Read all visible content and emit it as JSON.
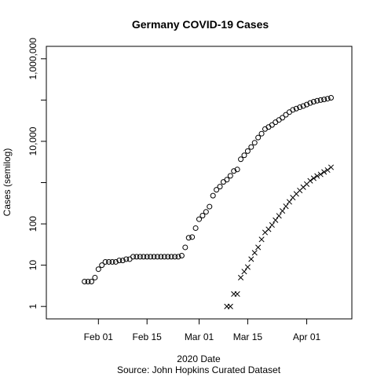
{
  "chart_data": {
    "type": "scatter",
    "title": "Germany COVID-19 Cases",
    "xlabel": "2020 Date",
    "source": "Source: John Hopkins Curated Dataset",
    "ylabel": "Cases (semilog)",
    "y_scale": "log",
    "ylim": [
      0.5,
      2000000
    ],
    "xlim": [
      "2020-01-17",
      "2020-04-14"
    ],
    "x_ticks": [
      {
        "date": "2020-02-01",
        "label": "Feb 01"
      },
      {
        "date": "2020-02-15",
        "label": "Feb 15"
      },
      {
        "date": "2020-03-01",
        "label": "Mar 01"
      },
      {
        "date": "2020-03-15",
        "label": "Mar 15"
      },
      {
        "date": "2020-04-01",
        "label": "Apr 01"
      }
    ],
    "y_ticks": [
      {
        "value": 1,
        "label": "1"
      },
      {
        "value": 10,
        "label": "10"
      },
      {
        "value": 100,
        "label": "100"
      },
      {
        "value": 10000,
        "label": "10,000"
      },
      {
        "value": 1000000,
        "label": "1,000,000"
      }
    ],
    "y_minor_ticks": [
      1000,
      100000
    ],
    "legend": "none",
    "grid": false,
    "series": [
      {
        "marker": "circle",
        "x": [
          "2020-01-28",
          "2020-01-29",
          "2020-01-30",
          "2020-01-31",
          "2020-02-01",
          "2020-02-02",
          "2020-02-03",
          "2020-02-04",
          "2020-02-05",
          "2020-02-06",
          "2020-02-07",
          "2020-02-08",
          "2020-02-09",
          "2020-02-10",
          "2020-02-11",
          "2020-02-12",
          "2020-02-13",
          "2020-02-14",
          "2020-02-15",
          "2020-02-16",
          "2020-02-17",
          "2020-02-18",
          "2020-02-19",
          "2020-02-20",
          "2020-02-21",
          "2020-02-22",
          "2020-02-23",
          "2020-02-24",
          "2020-02-25",
          "2020-02-26",
          "2020-02-27",
          "2020-02-28",
          "2020-02-29",
          "2020-03-01",
          "2020-03-02",
          "2020-03-03",
          "2020-03-04",
          "2020-03-05",
          "2020-03-06",
          "2020-03-07",
          "2020-03-08",
          "2020-03-09",
          "2020-03-10",
          "2020-03-11",
          "2020-03-12",
          "2020-03-13",
          "2020-03-14",
          "2020-03-15",
          "2020-03-16",
          "2020-03-17",
          "2020-03-18",
          "2020-03-19",
          "2020-03-20",
          "2020-03-21",
          "2020-03-22",
          "2020-03-23",
          "2020-03-24",
          "2020-03-25",
          "2020-03-26",
          "2020-03-27",
          "2020-03-28",
          "2020-03-29",
          "2020-03-30",
          "2020-03-31",
          "2020-04-01",
          "2020-04-02",
          "2020-04-03",
          "2020-04-04",
          "2020-04-05",
          "2020-04-06",
          "2020-04-07",
          "2020-04-08"
        ],
        "values": [
          4,
          4,
          4,
          5,
          8,
          10,
          12,
          12,
          12,
          12,
          13,
          13,
          14,
          14,
          16,
          16,
          16,
          16,
          16,
          16,
          16,
          16,
          16,
          16,
          16,
          16,
          16,
          16,
          17,
          27,
          46,
          48,
          79,
          130,
          159,
          196,
          262,
          482,
          670,
          799,
          1040,
          1176,
          1457,
          1908,
          2078,
          3675,
          4585,
          5795,
          7272,
          9257,
          12327,
          15320,
          19848,
          22213,
          24873,
          29056,
          32986,
          37323,
          43938,
          50871,
          57695,
          62095,
          66885,
          71808,
          77872,
          84794,
          91159,
          96092,
          100123,
          103374,
          107663,
          113296
        ]
      },
      {
        "marker": "x",
        "x": [
          "2020-03-09",
          "2020-03-10",
          "2020-03-11",
          "2020-03-12",
          "2020-03-13",
          "2020-03-14",
          "2020-03-15",
          "2020-03-16",
          "2020-03-17",
          "2020-03-18",
          "2020-03-19",
          "2020-03-20",
          "2020-03-21",
          "2020-03-22",
          "2020-03-23",
          "2020-03-24",
          "2020-03-25",
          "2020-03-26",
          "2020-03-27",
          "2020-03-28",
          "2020-03-29",
          "2020-03-30",
          "2020-03-31",
          "2020-04-01",
          "2020-04-02",
          "2020-04-03",
          "2020-04-04",
          "2020-04-05",
          "2020-04-06",
          "2020-04-07",
          "2020-04-08"
        ],
        "values": [
          1,
          1,
          2,
          2,
          5,
          7,
          9,
          14,
          20,
          27,
          42,
          62,
          74,
          94,
          123,
          157,
          206,
          267,
          342,
          433,
          533,
          645,
          775,
          920,
          1107,
          1275,
          1444,
          1584,
          1810,
          2016,
          2349
        ]
      }
    ]
  }
}
